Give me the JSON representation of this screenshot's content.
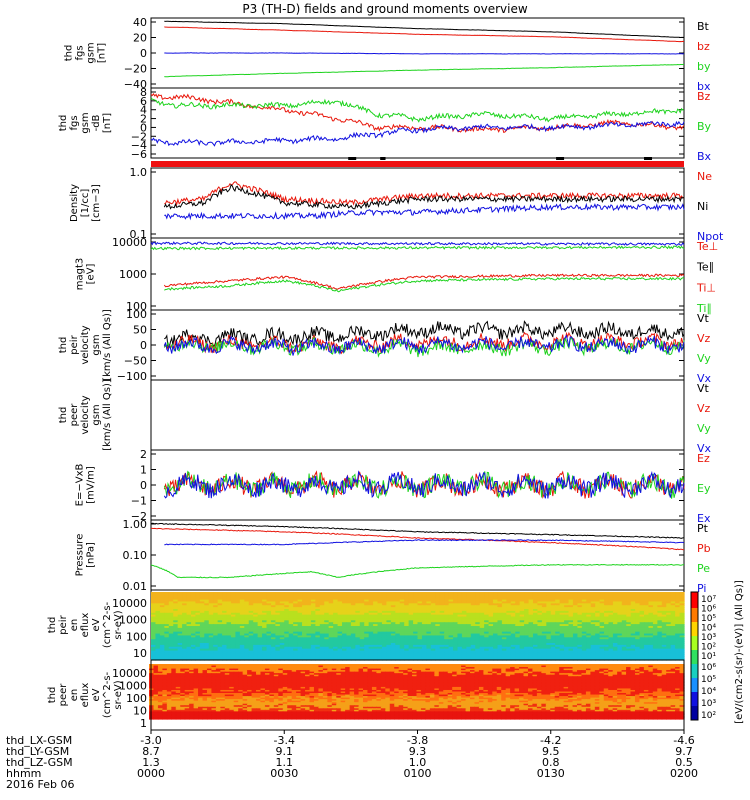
{
  "title": "P3 (TH-D) fields and ground moments overview",
  "colors": {
    "black": "#000000",
    "red": "#e8170b",
    "green": "#1ed31e",
    "blue": "#1010e0",
    "statusbar": "#ee1111"
  },
  "x_ticks": [
    "0000",
    "0030",
    "0100",
    "0130",
    "0200"
  ],
  "x_positions": {
    "labels": [
      "thd_LX-GSM",
      "thd_LY-GSM",
      "thd_LZ-GSM",
      "hhmm",
      "2016 Feb 06"
    ],
    "rows": [
      [
        "-3.0",
        "-3.4",
        "-3.8",
        "-4.2",
        "-4.6"
      ],
      [
        "8.7",
        "9.1",
        "9.3",
        "9.5",
        "9.7"
      ],
      [
        "1.3",
        "1.1",
        "1.0",
        "0.8",
        "0.5"
      ]
    ]
  },
  "colorbar": {
    "label": "[eV/(cm2-s(sr)-(eV)] (All Qs)]",
    "ticks_top": [
      "10⁷",
      "10⁶",
      "10⁵",
      "10⁴",
      "10³",
      "10²",
      "10¹"
    ],
    "ticks_bottom": [
      "10⁶",
      "10⁵",
      "10⁴",
      "10³",
      "10²"
    ]
  },
  "chart_data": [
    {
      "type": "line",
      "panel": "fgs",
      "ylabel": [
        "thd",
        "fgs",
        "gsm",
        "[nT]"
      ],
      "yticks": [
        "40",
        "20",
        "0",
        "−20",
        "−40"
      ],
      "ylim": [
        -42,
        44
      ],
      "legend": [
        "Bt",
        "bz",
        "by",
        "bx"
      ],
      "series": [
        {
          "name": "Bt",
          "x_hr": [
            0.05,
            0.5,
            1.0,
            1.5,
            2.0
          ],
          "values": [
            40,
            37,
            31,
            27,
            20
          ]
        },
        {
          "name": "bz",
          "x_hr": [
            0.05,
            0.5,
            1.0,
            1.5,
            2.0
          ],
          "values": [
            33,
            29,
            24,
            21,
            15
          ]
        },
        {
          "name": "by",
          "x_hr": [
            0.05,
            0.5,
            1.0,
            1.5,
            2.0
          ],
          "values": [
            -28,
            -24,
            -20,
            -17,
            -13
          ]
        },
        {
          "name": "bx",
          "x_hr": [
            0.05,
            0.5,
            1.0,
            1.5,
            2.0
          ],
          "values": [
            1,
            1,
            0,
            0,
            0
          ]
        }
      ]
    },
    {
      "type": "line",
      "panel": "fgs-dB",
      "ylabel": [
        "thd",
        "fgs",
        "gsm",
        "-dB",
        "[nT]"
      ],
      "yticks": [
        "8",
        "6",
        "4",
        "2",
        "0",
        "−2",
        "−4",
        "−6"
      ],
      "ylim": [
        -7,
        9
      ],
      "legend": [
        "Bz",
        "By",
        "Bx"
      ],
      "series": [
        {
          "name": "Bz",
          "x_hr": [
            0,
            0.1,
            0.25,
            0.5,
            0.7,
            0.85,
            1.0,
            1.25,
            1.5,
            1.75,
            2.0
          ],
          "values": [
            7,
            7,
            6,
            4,
            2,
            0,
            0,
            -0.5,
            0,
            1,
            0
          ]
        },
        {
          "name": "By",
          "x_hr": [
            0,
            0.1,
            0.25,
            0.5,
            0.7,
            0.85,
            1.0,
            1.25,
            1.5,
            1.75,
            2.0
          ],
          "values": [
            6,
            5,
            5,
            5,
            6,
            3,
            2,
            3,
            2,
            3,
            4
          ]
        },
        {
          "name": "Bx",
          "x_hr": [
            0,
            0.1,
            0.25,
            0.5,
            0.7,
            0.85,
            1.0,
            1.25,
            1.5,
            1.75,
            2.0
          ],
          "values": [
            -3,
            -3.5,
            -3.5,
            -3,
            -2.5,
            -1.5,
            -0.5,
            0,
            0,
            0.5,
            1
          ]
        }
      ]
    },
    {
      "type": "line",
      "panel": "density",
      "ylabel": [
        "Density",
        "[1/cc]",
        "[cm−3]"
      ],
      "yticks": [
        "1.0",
        "0.1"
      ],
      "scale": "log",
      "ylim": [
        0.1,
        1.2
      ],
      "legend": [
        "Ne",
        "Ni",
        "Npot"
      ],
      "series": [
        {
          "name": "Ne",
          "x_hr": [
            0.05,
            0.2,
            0.3,
            0.5,
            0.75,
            1.0,
            1.5,
            2.0
          ],
          "values": [
            0.35,
            0.4,
            0.7,
            0.4,
            0.35,
            0.45,
            0.45,
            0.45
          ]
        },
        {
          "name": "Ni",
          "x_hr": [
            0.05,
            0.2,
            0.3,
            0.5,
            0.75,
            1.0,
            1.5,
            2.0
          ],
          "values": [
            0.3,
            0.35,
            0.6,
            0.35,
            0.3,
            0.4,
            0.4,
            0.4
          ]
        },
        {
          "name": "Npot",
          "x_hr": [
            0.05,
            0.3,
            0.6,
            0.8,
            1.0,
            1.5,
            2.0
          ],
          "values": [
            0.22,
            0.22,
            0.22,
            0.25,
            0.25,
            0.3,
            0.3
          ]
        }
      ]
    },
    {
      "type": "line",
      "panel": "temperature",
      "ylabel": [
        "magt3",
        "[eV]"
      ],
      "yticks": [
        "10000",
        "1000",
        "100"
      ],
      "scale": "log",
      "ylim": [
        100,
        12000
      ],
      "legend": [
        "Te⊥",
        "Te∥",
        "Ti⊥",
        "Ti∥"
      ],
      "series": [
        {
          "name": "Te⊥",
          "x_hr": [
            0,
            2.0
          ],
          "values": [
            8500,
            8000
          ]
        },
        {
          "name": "Te∥",
          "x_hr": [
            0,
            2.0
          ],
          "values": [
            6000,
            6500
          ]
        },
        {
          "name": "Ti⊥",
          "x_hr": [
            0.05,
            0.3,
            0.5,
            0.7,
            1.0,
            1.5,
            2.0
          ],
          "values": [
            500,
            700,
            900,
            400,
            900,
            1000,
            1000
          ]
        },
        {
          "name": "Ti∥",
          "x_hr": [
            0.05,
            0.3,
            0.5,
            0.7,
            1.0,
            1.5,
            2.0
          ],
          "values": [
            400,
            500,
            700,
            350,
            700,
            800,
            800
          ]
        }
      ]
    },
    {
      "type": "line",
      "panel": "peir-velocity",
      "ylabel": [
        "thd",
        "peir",
        "velocity",
        "gsm",
        "[km/s (All Qs)]"
      ],
      "yticks": [
        "100",
        "50",
        "0",
        "−50",
        "−100"
      ],
      "ylim": [
        -105,
        105
      ],
      "legend": [
        "Vt",
        "Vz",
        "Vy",
        "Vx"
      ],
      "series": [
        {
          "name": "Vt",
          "x_hr": [
            0.05,
            0.7,
            1.0,
            2.0
          ],
          "values": [
            20,
            30,
            45,
            40
          ]
        },
        {
          "name": "Vz",
          "x_hr": [
            0.05,
            0.7,
            1.0,
            2.0
          ],
          "values": [
            5,
            0,
            10,
            10
          ]
        },
        {
          "name": "Vy",
          "x_hr": [
            0.05,
            0.7,
            1.0,
            2.0
          ],
          "values": [
            0,
            -5,
            -10,
            0
          ]
        },
        {
          "name": "Vx",
          "x_hr": [
            0.05,
            0.7,
            1.0,
            2.0
          ],
          "values": [
            0,
            -5,
            0,
            0
          ]
        }
      ]
    },
    {
      "type": "line",
      "panel": "peer-velocity",
      "ylabel": [
        "thd",
        "peer",
        "velocity",
        "gsm",
        "[km/s (All Qs)]"
      ],
      "yticks": [],
      "legend": [
        "Vt",
        "Vz",
        "Vy",
        "Vx"
      ],
      "series": []
    },
    {
      "type": "line",
      "panel": "efield",
      "ylabel": [
        "E=−VxB",
        "[mV/m]"
      ],
      "yticks": [
        "2",
        "1",
        "0",
        "−1",
        "−2"
      ],
      "ylim": [
        -2.2,
        2.2
      ],
      "legend": [
        "Ez",
        "Ey",
        "Ex"
      ],
      "series": [
        {
          "name": "Ez",
          "x_hr": [
            0.05,
            2.0
          ],
          "values": [
            0,
            0
          ]
        },
        {
          "name": "Ey",
          "x_hr": [
            0.05,
            2.0
          ],
          "values": [
            0,
            0
          ]
        },
        {
          "name": "Ex",
          "x_hr": [
            0.05,
            2.0
          ],
          "values": [
            0,
            0
          ]
        }
      ]
    },
    {
      "type": "line",
      "panel": "pressure",
      "ylabel": [
        "Pressure",
        "[nPa]"
      ],
      "yticks": [
        "1.00",
        "0.10",
        "0.01"
      ],
      "scale": "log",
      "ylim": [
        0.008,
        1.3
      ],
      "legend": [
        "Pt",
        "Pb",
        "Pe",
        "Pi"
      ],
      "series": [
        {
          "name": "Pt",
          "x_hr": [
            0,
            0.5,
            1.0,
            1.5,
            2.0
          ],
          "values": [
            1.0,
            0.8,
            0.55,
            0.45,
            0.35
          ]
        },
        {
          "name": "Pb",
          "x_hr": [
            0,
            0.5,
            1.0,
            1.5,
            2.0
          ],
          "values": [
            0.7,
            0.55,
            0.35,
            0.25,
            0.15
          ]
        },
        {
          "name": "Pe",
          "x_hr": [
            0,
            0.1,
            0.3,
            0.6,
            0.7,
            1.0,
            1.5,
            2.0
          ],
          "values": [
            0.05,
            0.02,
            0.02,
            0.03,
            0.02,
            0.04,
            0.05,
            0.05
          ]
        },
        {
          "name": "Pi",
          "x_hr": [
            0.05,
            0.5,
            1.0,
            1.5,
            2.0
          ],
          "values": [
            0.22,
            0.22,
            0.3,
            0.3,
            0.25
          ]
        }
      ]
    },
    {
      "type": "heatmap",
      "panel": "peir-eflux",
      "ylabel": [
        "thd",
        "peir",
        "en",
        "eflux",
        "eV",
        "(cm^2-s-",
        "sr-eV)"
      ],
      "yticks": [
        "10000",
        "1000",
        "100",
        "10"
      ],
      "scale": "log"
    },
    {
      "type": "heatmap",
      "panel": "peer-eflux",
      "ylabel": [
        "thd",
        "peer",
        "en",
        "eflux",
        "eV",
        "(cm^2-s-",
        "sr-eV)"
      ],
      "yticks": [
        "10000",
        "1000",
        "100",
        "10",
        "1"
      ],
      "scale": "log"
    }
  ]
}
